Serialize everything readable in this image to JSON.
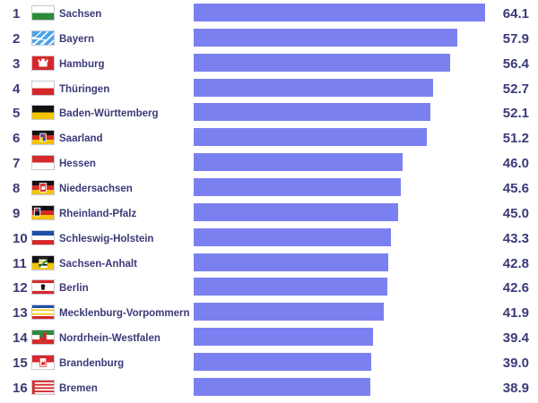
{
  "chart_data": {
    "type": "bar",
    "orientation": "horizontal",
    "title": "",
    "xlabel": "",
    "ylabel": "",
    "xlim": [
      0,
      64.1
    ],
    "grid": false,
    "bar_color": "#7b80f0",
    "text_color": "#3a3a78",
    "categories": [
      "Sachsen",
      "Bayern",
      "Hamburg",
      "Thüringen",
      "Baden-Württemberg",
      "Saarland",
      "Hessen",
      "Niedersachsen",
      "Rheinland-Pfalz",
      "Schleswig-Holstein",
      "Sachsen-Anhalt",
      "Berlin",
      "Mecklenburg-Vorpommern",
      "Nordrhein-Westfalen",
      "Brandenburg",
      "Bremen"
    ],
    "ranks": [
      "1",
      "2",
      "3",
      "4",
      "5",
      "6",
      "7",
      "8",
      "9",
      "10",
      "11",
      "12",
      "13",
      "14",
      "15",
      "16"
    ],
    "values": [
      64.1,
      57.9,
      56.4,
      52.7,
      52.1,
      51.2,
      46.0,
      45.6,
      45.0,
      43.3,
      42.8,
      42.6,
      41.9,
      39.4,
      39.0,
      38.9
    ],
    "value_labels": [
      "64.1",
      "57.9",
      "56.4",
      "52.7",
      "52.1",
      "51.2",
      "46.0",
      "45.6",
      "45.0",
      "43.3",
      "42.8",
      "42.6",
      "41.9",
      "39.4",
      "39.0",
      "38.9"
    ],
    "flag_icons": [
      "flag-sachsen-icon",
      "flag-bayern-icon",
      "flag-hamburg-icon",
      "flag-thueringen-icon",
      "flag-baden-wuerttemberg-icon",
      "flag-saarland-icon",
      "flag-hessen-icon",
      "flag-niedersachsen-icon",
      "flag-rheinland-pfalz-icon",
      "flag-schleswig-holstein-icon",
      "flag-sachsen-anhalt-icon",
      "flag-berlin-icon",
      "flag-mecklenburg-vorpommern-icon",
      "flag-nordrhein-westfalen-icon",
      "flag-brandenburg-icon",
      "flag-bremen-icon"
    ]
  }
}
